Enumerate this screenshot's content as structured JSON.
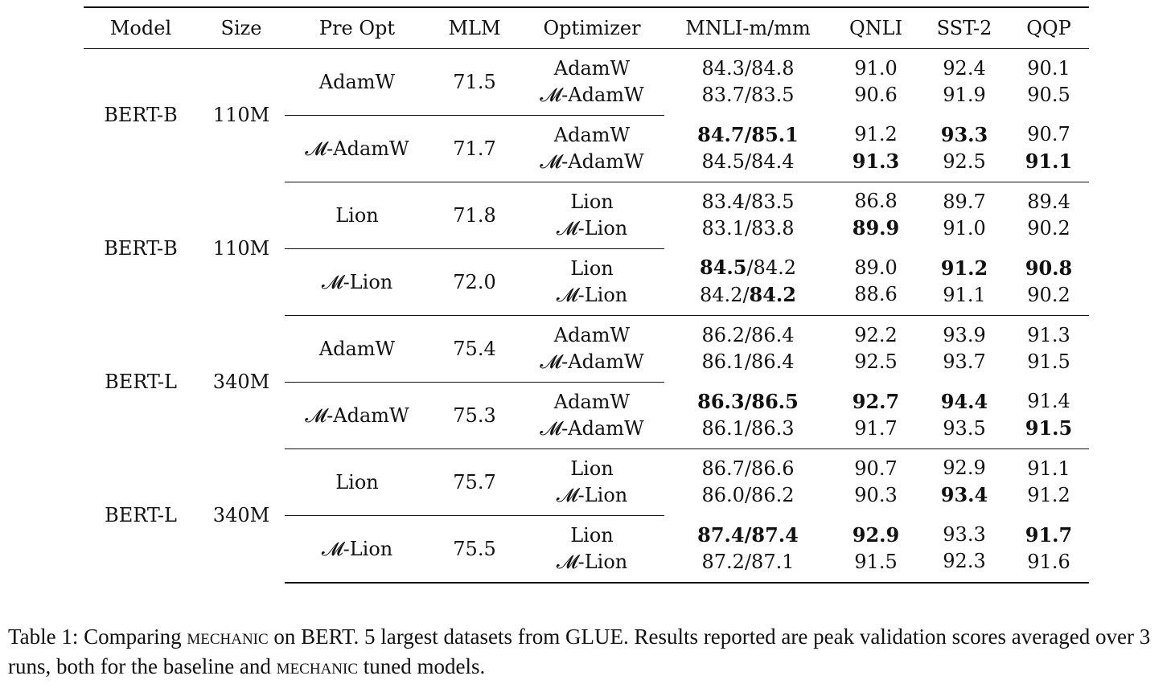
{
  "headers": [
    "Model",
    "Size",
    "Pre Opt",
    "MLM",
    "Optimizer",
    "MNLI-m/mm",
    "QNLI",
    "SST-2",
    "QQP"
  ],
  "groups": [
    {
      "model": "BERT-B",
      "size": "110M",
      "blocks": [
        {
          "pre_opt": "AdamW",
          "mlm": "71.5",
          "mlm_bold": false,
          "rows": [
            {
              "opt": "AdamW",
              "mnli": [
                {
                  "t": "84.3"
                },
                {
                  "t": "/"
                },
                {
                  "t": "84.8"
                }
              ],
              "qnli": {
                "t": "91.0"
              },
              "sst2": {
                "t": "92.4"
              },
              "qqp": {
                "t": "90.1"
              }
            },
            {
              "opt": "𝓜-AdamW",
              "mnli": [
                {
                  "t": "83.7"
                },
                {
                  "t": "/"
                },
                {
                  "t": "83.5"
                }
              ],
              "qnli": {
                "t": "90.6"
              },
              "sst2": {
                "t": "91.9"
              },
              "qqp": {
                "t": "90.5"
              }
            }
          ]
        },
        {
          "pre_opt": "𝓜-AdamW",
          "mlm": "71.7",
          "mlm_bold": true,
          "rows": [
            {
              "opt": "AdamW",
              "mnli": [
                {
                  "t": "84.7",
                  "b": true
                },
                {
                  "t": "/",
                  "b": true
                },
                {
                  "t": "85.1",
                  "b": true
                }
              ],
              "qnli": {
                "t": "91.2"
              },
              "sst2": {
                "t": "93.3",
                "b": true
              },
              "qqp": {
                "t": "90.7"
              }
            },
            {
              "opt": "𝓜-AdamW",
              "mnli": [
                {
                  "t": "84.5"
                },
                {
                  "t": "/"
                },
                {
                  "t": "84.4"
                }
              ],
              "qnli": {
                "t": "91.3",
                "b": true
              },
              "sst2": {
                "t": "92.5"
              },
              "qqp": {
                "t": "91.1",
                "b": true
              }
            }
          ]
        }
      ]
    },
    {
      "model": "BERT-B",
      "size": "110M",
      "blocks": [
        {
          "pre_opt": "Lion",
          "mlm": "71.8",
          "mlm_bold": false,
          "rows": [
            {
              "opt": "Lion",
              "mnli": [
                {
                  "t": "83.4"
                },
                {
                  "t": "/"
                },
                {
                  "t": "83.5"
                }
              ],
              "qnli": {
                "t": "86.8"
              },
              "sst2": {
                "t": "89.7"
              },
              "qqp": {
                "t": "89.4"
              }
            },
            {
              "opt": "𝓜-Lion",
              "mnli": [
                {
                  "t": "83.1"
                },
                {
                  "t": "/"
                },
                {
                  "t": "83.8"
                }
              ],
              "qnli": {
                "t": "89.9",
                "b": true
              },
              "sst2": {
                "t": "91.0"
              },
              "qqp": {
                "t": "90.2"
              }
            }
          ]
        },
        {
          "pre_opt": "𝓜-Lion",
          "mlm": "72.0",
          "mlm_bold": true,
          "rows": [
            {
              "opt": "Lion",
              "mnli": [
                {
                  "t": "84.5",
                  "b": true
                },
                {
                  "t": "/"
                },
                {
                  "t": "84.2"
                }
              ],
              "qnli": {
                "t": "89.0"
              },
              "sst2": {
                "t": "91.2",
                "b": true
              },
              "qqp": {
                "t": "90.8",
                "b": true
              }
            },
            {
              "opt": "𝓜-Lion",
              "mnli": [
                {
                  "t": "84.2"
                },
                {
                  "t": "/"
                },
                {
                  "t": "84.2",
                  "b": true
                }
              ],
              "qnli": {
                "t": "88.6"
              },
              "sst2": {
                "t": "91.1"
              },
              "qqp": {
                "t": "90.2"
              }
            }
          ]
        }
      ]
    },
    {
      "model": "BERT-L",
      "size": "340M",
      "blocks": [
        {
          "pre_opt": "AdamW",
          "mlm": "75.4",
          "mlm_bold": true,
          "rows": [
            {
              "opt": "AdamW",
              "mnli": [
                {
                  "t": "86.2"
                },
                {
                  "t": "/"
                },
                {
                  "t": "86.4"
                }
              ],
              "qnli": {
                "t": "92.2"
              },
              "sst2": {
                "t": "93.9"
              },
              "qqp": {
                "t": "91.3"
              }
            },
            {
              "opt": "𝓜-AdamW",
              "mnli": [
                {
                  "t": "86.1"
                },
                {
                  "t": "/"
                },
                {
                  "t": "86.4"
                }
              ],
              "qnli": {
                "t": "92.5"
              },
              "sst2": {
                "t": "93.7"
              },
              "qqp": {
                "t": "91.5"
              }
            }
          ]
        },
        {
          "pre_opt": "𝓜-AdamW",
          "mlm": "75.3",
          "mlm_bold": false,
          "rows": [
            {
              "opt": "AdamW",
              "mnli": [
                {
                  "t": "86.3",
                  "b": true
                },
                {
                  "t": "/",
                  "b": true
                },
                {
                  "t": "86.5",
                  "b": true
                }
              ],
              "qnli": {
                "t": "92.7",
                "b": true
              },
              "sst2": {
                "t": "94.4",
                "b": true
              },
              "qqp": {
                "t": "91.4"
              }
            },
            {
              "opt": "𝓜-AdamW",
              "mnli": [
                {
                  "t": "86.1"
                },
                {
                  "t": "/"
                },
                {
                  "t": "86.3"
                }
              ],
              "qnli": {
                "t": "91.7"
              },
              "sst2": {
                "t": "93.5"
              },
              "qqp": {
                "t": "91.5",
                "b": true
              }
            }
          ]
        }
      ]
    },
    {
      "model": "BERT-L",
      "size": "340M",
      "blocks": [
        {
          "pre_opt": "Lion",
          "mlm": "75.7",
          "mlm_bold": true,
          "rows": [
            {
              "opt": "Lion",
              "mnli": [
                {
                  "t": "86.7"
                },
                {
                  "t": "/"
                },
                {
                  "t": "86.6"
                }
              ],
              "qnli": {
                "t": "90.7"
              },
              "sst2": {
                "t": "92.9"
              },
              "qqp": {
                "t": "91.1"
              }
            },
            {
              "opt": "𝓜-Lion",
              "mnli": [
                {
                  "t": "86.0"
                },
                {
                  "t": "/"
                },
                {
                  "t": "86.2"
                }
              ],
              "qnli": {
                "t": "90.3"
              },
              "sst2": {
                "t": "93.4",
                "b": true
              },
              "qqp": {
                "t": "91.2"
              }
            }
          ]
        },
        {
          "pre_opt": "𝓜-Lion",
          "mlm": "75.5",
          "mlm_bold": false,
          "rows": [
            {
              "opt": "Lion",
              "mnli": [
                {
                  "t": "87.4",
                  "b": true
                },
                {
                  "t": "/",
                  "b": true
                },
                {
                  "t": "87.4",
                  "b": true
                }
              ],
              "qnli": {
                "t": "92.9",
                "b": true
              },
              "sst2": {
                "t": "93.3"
              },
              "qqp": {
                "t": "91.7",
                "b": true
              }
            },
            {
              "opt": "𝓜-Lion",
              "mnli": [
                {
                  "t": "87.2"
                },
                {
                  "t": "/"
                },
                {
                  "t": "87.1"
                }
              ],
              "qnli": {
                "t": "91.5"
              },
              "sst2": {
                "t": "92.3"
              },
              "qqp": {
                "t": "91.6"
              }
            }
          ]
        }
      ]
    }
  ],
  "caption": {
    "label": "Table 1:",
    "p1": " Comparing ",
    "sc1": "mechanic",
    "p2": " on BERT. 5 largest datasets from GLUE. Results reported are peak validation scores averaged over 3 runs, both for the baseline and ",
    "sc2": "mechanic",
    "p3": " tuned models."
  }
}
